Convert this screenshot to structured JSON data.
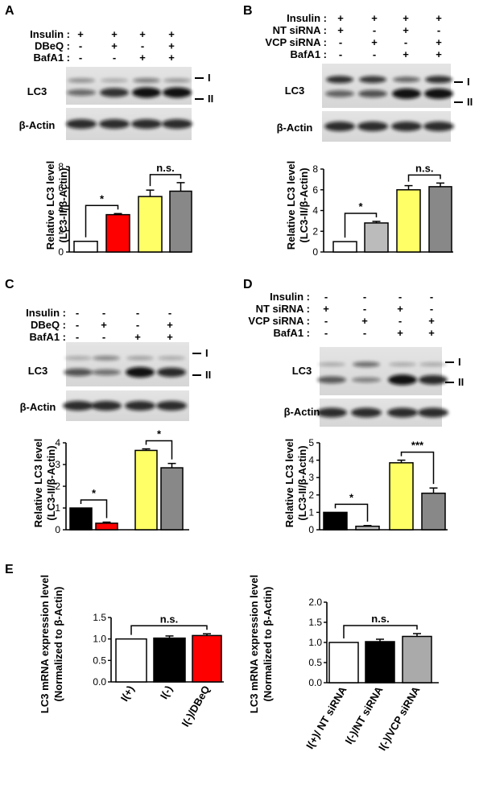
{
  "panels": {
    "A": {
      "letter": "A",
      "treat_labels": [
        "Insulin :",
        "DBeQ :",
        "BafA1 :"
      ],
      "signs": [
        [
          "+",
          "+",
          "+",
          "+"
        ],
        [
          "-",
          "+",
          "-",
          "+"
        ],
        [
          "-",
          "-",
          "+",
          "+"
        ]
      ],
      "blot_labels": {
        "lc3": "LC3",
        "actin": "β-Actin",
        "band1": "I",
        "band2": "II"
      }
    },
    "B": {
      "letter": "B",
      "treat_labels": [
        "Insulin :",
        "NT siRNA :",
        "VCP siRNA :",
        "BafA1 :"
      ],
      "signs": [
        [
          "+",
          "+",
          "+",
          "+"
        ],
        [
          "+",
          "-",
          "+",
          "-"
        ],
        [
          "-",
          "+",
          "-",
          "+"
        ],
        [
          "-",
          "-",
          "+",
          "+"
        ]
      ],
      "blot_labels": {
        "lc3": "LC3",
        "actin": "β-Actin",
        "band1": "I",
        "band2": "II"
      }
    },
    "C": {
      "letter": "C",
      "treat_labels": [
        "Insulin :",
        "DBeQ :",
        "BafA1 :"
      ],
      "signs": [
        [
          "-",
          "-",
          "-",
          "-"
        ],
        [
          "-",
          "+",
          "-",
          "+"
        ],
        [
          "-",
          "-",
          "+",
          "+"
        ]
      ],
      "blot_labels": {
        "lc3": "LC3",
        "actin": "β-Actin",
        "band1": "I",
        "band2": "II"
      }
    },
    "D": {
      "letter": "D",
      "treat_labels": [
        "Insulin :",
        "NT siRNA :",
        "VCP siRNA :",
        "BafA1 :"
      ],
      "signs": [
        [
          "-",
          "-",
          "-",
          "-"
        ],
        [
          "+",
          "-",
          "+",
          "-"
        ],
        [
          "-",
          "+",
          "-",
          "+"
        ],
        [
          "-",
          "-",
          "+",
          "+"
        ]
      ],
      "blot_labels": {
        "lc3": "LC3",
        "actin": "β-Actin",
        "band1": "I",
        "band2": "II"
      }
    },
    "E": {
      "letter": "E"
    }
  },
  "colors": {
    "white": "#ffffff",
    "red": "#ff0000",
    "yellow": "#ffff66",
    "gray": "#888888",
    "lightgray": "#bbbbbb",
    "black": "#000000"
  },
  "chart_data": [
    {
      "id": "A",
      "type": "bar",
      "ylabel": [
        "Relative LC3 level",
        "(LC3-II/β-Actin)"
      ],
      "ylim": [
        0,
        8
      ],
      "yticks": [
        0,
        2,
        4,
        6,
        8
      ],
      "values": [
        1.0,
        3.5,
        5.2,
        5.7
      ],
      "errors": [
        0,
        0.1,
        0.6,
        0.8
      ],
      "bar_colors": [
        "#ffffff",
        "#ff0000",
        "#ffff66",
        "#888888"
      ],
      "sig": [
        {
          "a": 0,
          "b": 1,
          "label": "*"
        },
        {
          "a": 2,
          "b": 3,
          "label": "n.s."
        }
      ]
    },
    {
      "id": "B",
      "type": "bar",
      "ylabel": [
        "Relative LC3 level",
        "(LC3-II/β-Actin)"
      ],
      "ylim": [
        0,
        8
      ],
      "yticks": [
        0,
        2,
        4,
        6,
        8
      ],
      "values": [
        1.0,
        2.8,
        6.0,
        6.3
      ],
      "errors": [
        0,
        0.15,
        0.4,
        0.35
      ],
      "bar_colors": [
        "#ffffff",
        "#bbbbbb",
        "#ffff66",
        "#888888"
      ],
      "sig": [
        {
          "a": 0,
          "b": 1,
          "label": "*"
        },
        {
          "a": 2,
          "b": 3,
          "label": "n.s."
        }
      ]
    },
    {
      "id": "C",
      "type": "bar",
      "ylabel": [
        "Relative LC3 level",
        "(LC3-II/β-Actin)"
      ],
      "ylim": [
        0,
        4
      ],
      "yticks": [
        0,
        1,
        2,
        3,
        4
      ],
      "values": [
        1.0,
        0.3,
        3.65,
        2.85
      ],
      "errors": [
        0,
        0.05,
        0.07,
        0.2
      ],
      "bar_colors": [
        "#000000",
        "#ff0000",
        "#ffff66",
        "#888888"
      ],
      "sig": [
        {
          "a": 0,
          "b": 1,
          "label": "*"
        },
        {
          "a": 2,
          "b": 3,
          "label": "*"
        }
      ]
    },
    {
      "id": "D",
      "type": "bar",
      "ylabel": [
        "Relative LC3 level",
        "(LC3-II/β-Actin)"
      ],
      "ylim": [
        0,
        5
      ],
      "yticks": [
        0,
        1,
        2,
        3,
        4,
        5
      ],
      "values": [
        1.0,
        0.2,
        3.85,
        2.1
      ],
      "errors": [
        0,
        0.04,
        0.15,
        0.3
      ],
      "bar_colors": [
        "#000000",
        "#bbbbbb",
        "#ffff66",
        "#888888"
      ],
      "sig": [
        {
          "a": 0,
          "b": 1,
          "label": "*"
        },
        {
          "a": 2,
          "b": 3,
          "label": "***"
        }
      ]
    },
    {
      "id": "E1",
      "type": "bar",
      "ylabel": [
        "LC3 mRNA expression level",
        "(Normalized to β-Actin)"
      ],
      "ylim": [
        0,
        1.5
      ],
      "yticks": [
        "0.0",
        "0.5",
        "1.0",
        "1.5"
      ],
      "categories": [
        "I(+)",
        "I(-)",
        "I(-)/DBeQ"
      ],
      "values": [
        1.0,
        1.02,
        1.08
      ],
      "errors": [
        0,
        0.05,
        0.04
      ],
      "bar_colors": [
        "#ffffff",
        "#000000",
        "#ff0000"
      ],
      "sig": [
        {
          "a": 0,
          "b": 2,
          "label": "n.s."
        }
      ]
    },
    {
      "id": "E2",
      "type": "bar",
      "ylabel": [
        "LC3 mRNA expression level",
        "(Normalized to β-Actin)"
      ],
      "ylim": [
        0,
        2.0
      ],
      "yticks": [
        "0.0",
        "0.5",
        "1.0",
        "1.5",
        "2.0"
      ],
      "categories": [
        "I(+)/ NT siRNA",
        "I(-)/NT siRNA",
        "I(-)/VCP siRNA"
      ],
      "values": [
        1.0,
        1.02,
        1.15
      ],
      "errors": [
        0,
        0.06,
        0.07
      ],
      "bar_colors": [
        "#ffffff",
        "#000000",
        "#aaaaaa"
      ],
      "sig": [
        {
          "a": 0,
          "b": 2,
          "label": "n.s."
        }
      ]
    }
  ]
}
